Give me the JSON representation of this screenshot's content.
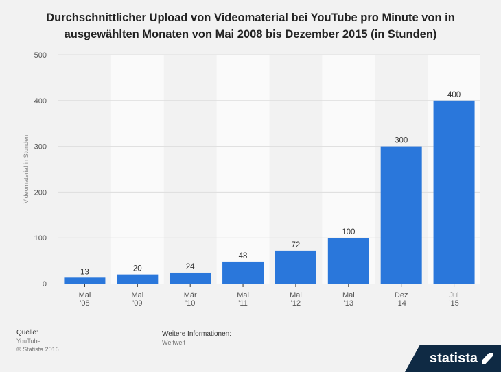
{
  "title": "Durchschnittlicher Upload von Videomaterial bei YouTube pro Minute von in ausgewählten Monaten von Mai 2008 bis Dezember 2015 (in Stunden)",
  "chart_data": {
    "type": "bar",
    "title": "Durchschnittlicher Upload von Videomaterial bei YouTube pro Minute von in ausgewählten Monaten von Mai 2008 bis Dezember 2015 (in Stunden)",
    "categories": [
      [
        "Mai",
        "'08"
      ],
      [
        "Mai",
        "'09"
      ],
      [
        "Mär",
        "'10"
      ],
      [
        "Mai",
        "'11"
      ],
      [
        "Mai",
        "'12"
      ],
      [
        "Mai",
        "'13"
      ],
      [
        "Dez",
        "'14"
      ],
      [
        "Jul",
        "'15"
      ]
    ],
    "values": [
      13,
      20,
      24,
      48,
      72,
      100,
      300,
      400
    ],
    "xlabel": "",
    "ylabel": "Videomaterial in Stunden",
    "ylim": [
      0,
      500
    ],
    "yticks": [
      0,
      100,
      200,
      300,
      400,
      500
    ],
    "grid": true,
    "bar_color": "#2a77db"
  },
  "footer": {
    "source_label": "Quelle:",
    "source_name": "YouTube",
    "copyright": "© Statista 2016",
    "info_label": "Weitere Informationen:",
    "info_value": "Weltweit"
  },
  "brand": "statista"
}
